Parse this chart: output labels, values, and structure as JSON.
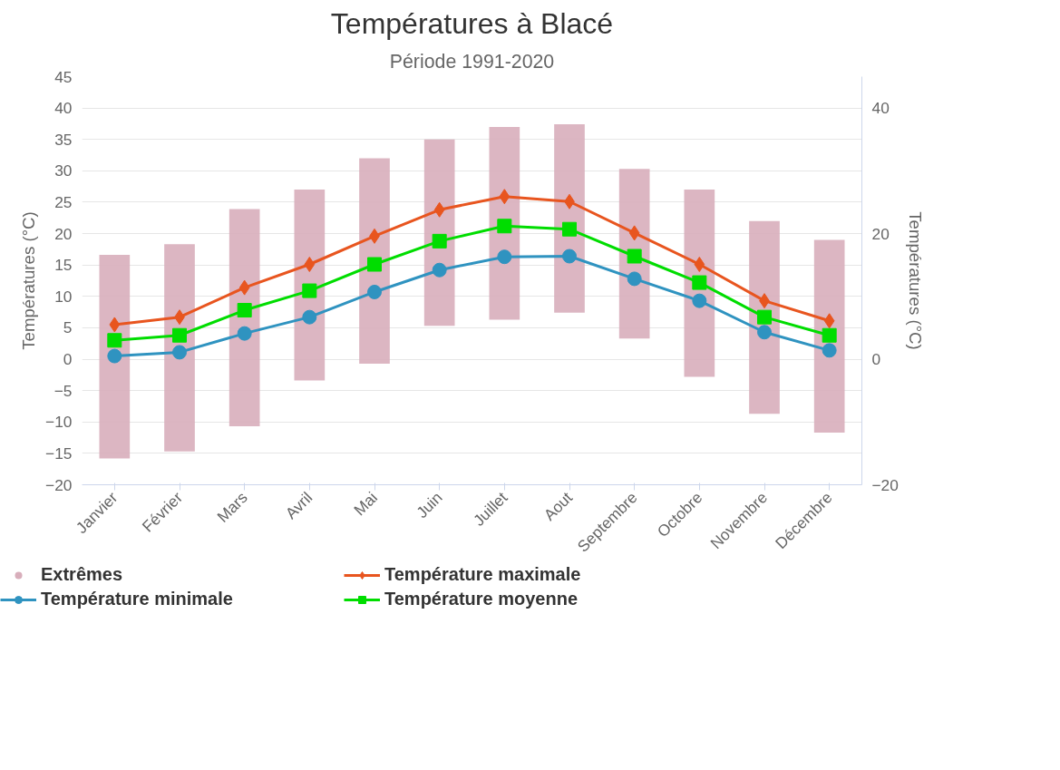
{
  "chart_data": {
    "type": "line",
    "title": "Températures à Blacé",
    "subtitle": "Période 1991-2020",
    "ylabel": "Températures (°C)",
    "y2label": "Températures (°C)",
    "categories": [
      "Janvier",
      "Février",
      "Mars",
      "Avril",
      "Mai",
      "Juin",
      "Juillet",
      "Aout",
      "Septembre",
      "Octobre",
      "Novembre",
      "Décembre"
    ],
    "series": [
      {
        "name": "Extrêmes",
        "type": "bar",
        "color": "#d8aebb",
        "base": [
          -15.8,
          -14.7,
          -10.7,
          -3.4,
          -0.7,
          5.3,
          6.3,
          7.4,
          3.3,
          -2.8,
          -8.7,
          -11.7
        ],
        "values": [
          32.4,
          33.0,
          34.6,
          30.4,
          32.7,
          29.7,
          30.7,
          30.0,
          27.0,
          29.8,
          30.7,
          30.7
        ]
      },
      {
        "name": "Température minimale",
        "color": "#2f93c0",
        "marker": "circle",
        "values": [
          0.5,
          1.1,
          4.1,
          6.7,
          10.7,
          14.2,
          16.3,
          16.4,
          12.8,
          9.3,
          4.3,
          1.4
        ]
      },
      {
        "name": "Température maximale",
        "color": "#e8551f",
        "marker": "diamond",
        "values": [
          5.5,
          6.7,
          11.4,
          15.1,
          19.6,
          23.8,
          25.9,
          25.1,
          20.1,
          15.1,
          9.3,
          6.1
        ]
      },
      {
        "name": "Température moyenne",
        "color": "#00dd00",
        "marker": "square",
        "values": [
          3.0,
          3.8,
          7.8,
          10.9,
          15.1,
          18.8,
          21.2,
          20.7,
          16.4,
          12.2,
          6.7,
          3.8
        ]
      }
    ],
    "ylim": [
      -20,
      45
    ],
    "yticks": [
      -20,
      -15,
      -10,
      -5,
      0,
      5,
      10,
      15,
      20,
      25,
      30,
      35,
      40,
      45
    ],
    "y2lim": [
      -20,
      45
    ],
    "y2ticks": [
      -20,
      0,
      20,
      40
    ],
    "grid": "y",
    "legend": "bottom",
    "line_style": "solid"
  }
}
